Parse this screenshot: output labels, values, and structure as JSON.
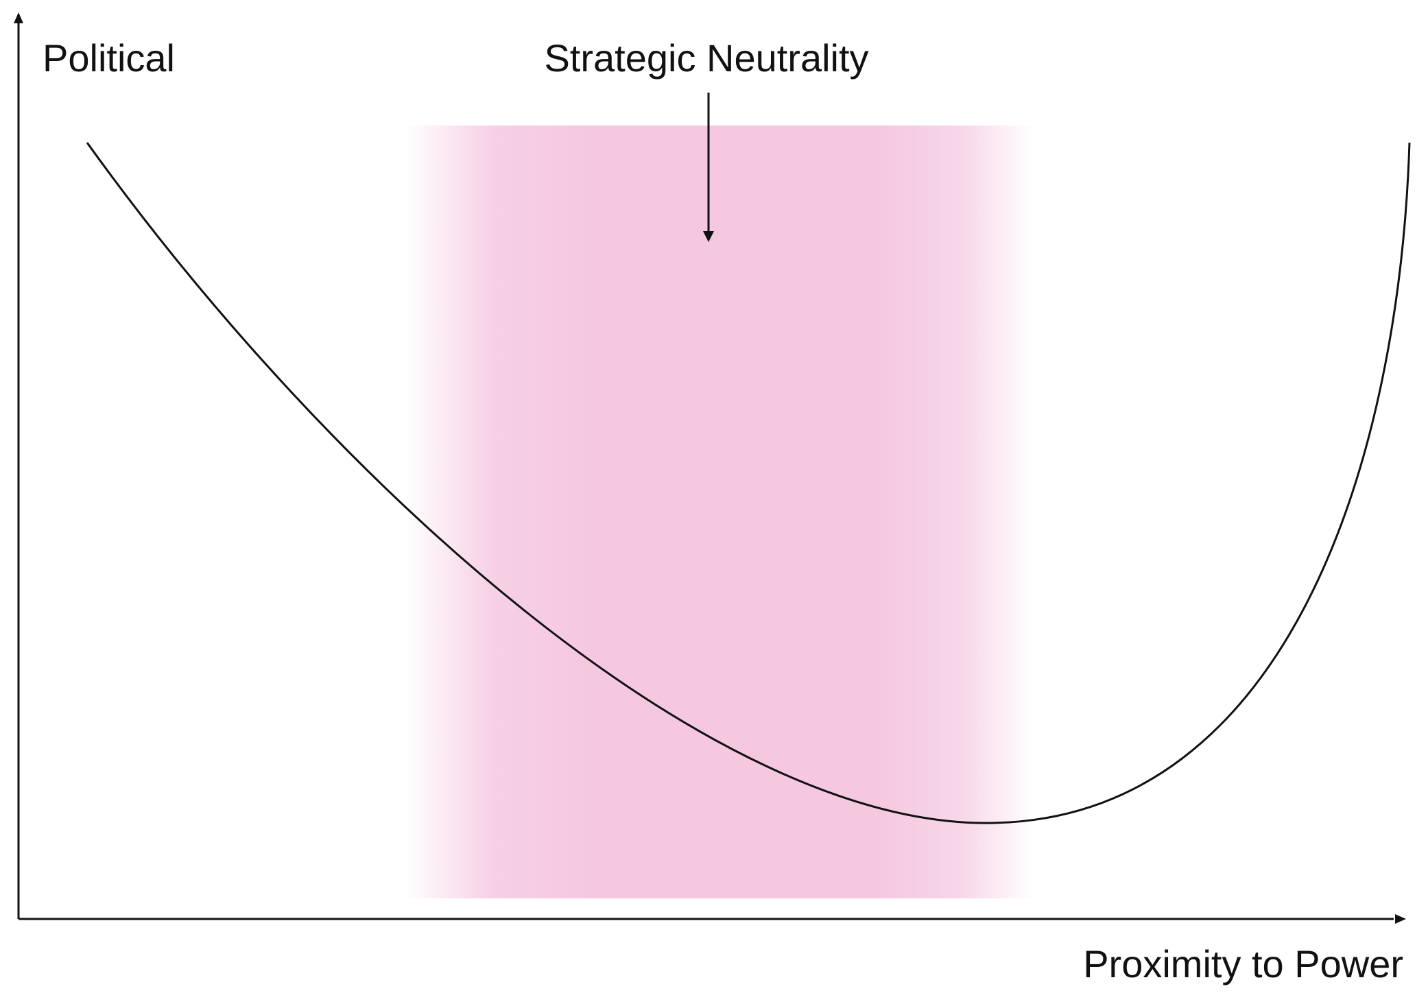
{
  "diagram": {
    "y_axis_label": "Political",
    "x_axis_label": "Proximity to Power",
    "zone_label": "Strategic Neutrality"
  },
  "colors": {
    "zone_fill": "#f5c8e0",
    "curve_stroke": "#111111",
    "axis_stroke": "#111111",
    "text": "#111111",
    "background": "#ffffff"
  }
}
